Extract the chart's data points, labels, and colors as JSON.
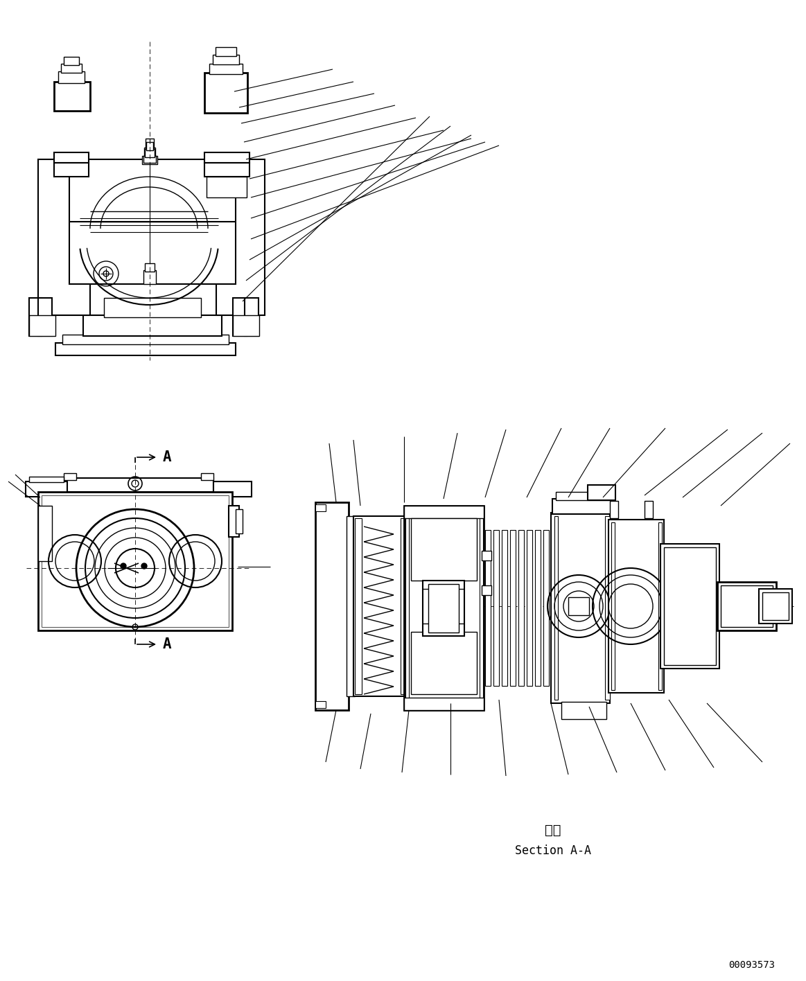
{
  "bg_color": "#ffffff",
  "line_color": "#000000",
  "fig_width": 11.63,
  "fig_height": 14.16,
  "dpi": 100,
  "watermark": "00093573",
  "section_label_jp": "断面",
  "section_label_en": "Section A-A"
}
